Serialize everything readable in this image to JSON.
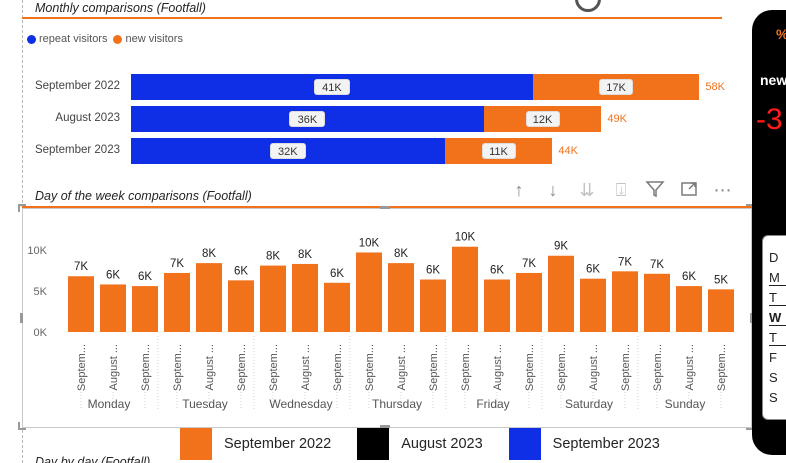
{
  "monthly": {
    "title": "Monthly comparisons (Footfall)",
    "legend": [
      {
        "label": "repeat visitors",
        "color": "#0f2fe6"
      },
      {
        "label": "new visitors",
        "color": "#f2721c"
      }
    ],
    "rows": [
      {
        "label": "September 2022",
        "repeat": 41,
        "new": 17,
        "repeat_label": "41K",
        "new_label": "17K",
        "total_label": "58K"
      },
      {
        "label": "August 2023",
        "repeat": 36,
        "new": 12,
        "repeat_label": "36K",
        "new_label": "12K",
        "total_label": "49K"
      },
      {
        "label": "September 2023",
        "repeat": 32,
        "new": 11,
        "repeat_label": "32K",
        "new_label": "11K",
        "total_label": "44K"
      }
    ]
  },
  "weekly": {
    "title": "Day of the week comparisons (Footfall)"
  },
  "toolbar": {
    "icons": [
      "arrow-up-icon",
      "arrow-down-icon",
      "double-arrow-down-icon",
      "expand-hierarchy-icon",
      "filter-icon",
      "focus-mode-icon",
      "more-options-icon"
    ]
  },
  "next_section_title": "Day by day (Footfall)",
  "right_panel": {
    "pct": "%",
    "new_label": "new",
    "big_value": "-3",
    "list_letters": [
      "D",
      "M",
      "T",
      "W",
      "T",
      "F",
      "S",
      "S"
    ]
  },
  "chart_data": {
    "type": "bar",
    "groups": [
      "Monday",
      "Tuesday",
      "Wednesday",
      "Thursday",
      "Friday",
      "Saturday",
      "Sunday"
    ],
    "categories": [
      "September 2022",
      "August 2023",
      "September 2023"
    ],
    "tick_labels": [
      "Septem...",
      "August ...",
      "Septem..."
    ],
    "values": [
      [
        6.8,
        5.8,
        5.6
      ],
      [
        7.2,
        8.4,
        6.3
      ],
      [
        8.1,
        8.3,
        6.0
      ],
      [
        9.7,
        8.4,
        6.4
      ],
      [
        10.4,
        6.4,
        7.2
      ],
      [
        9.3,
        6.5,
        7.4
      ],
      [
        7.1,
        5.6,
        5.2
      ]
    ],
    "data_labels": [
      [
        "7K",
        "6K",
        "6K"
      ],
      [
        "7K",
        "8K",
        "6K"
      ],
      [
        "8K",
        "8K",
        "6K"
      ],
      [
        "10K",
        "8K",
        "6K"
      ],
      [
        "10K",
        "6K",
        "7K"
      ],
      [
        "9K",
        "6K",
        "7K"
      ],
      [
        "7K",
        "6K",
        "5K"
      ]
    ],
    "bar_color": "#f2721c",
    "yticks": [
      "0K",
      "5K",
      "10K"
    ],
    "ylim": [
      0,
      12
    ],
    "legend": [
      {
        "label": "September 2022",
        "color": "#f2721c"
      },
      {
        "label": "August 2023",
        "color": "#000000"
      },
      {
        "label": "September 2023",
        "color": "#0f2fe6"
      }
    ]
  }
}
